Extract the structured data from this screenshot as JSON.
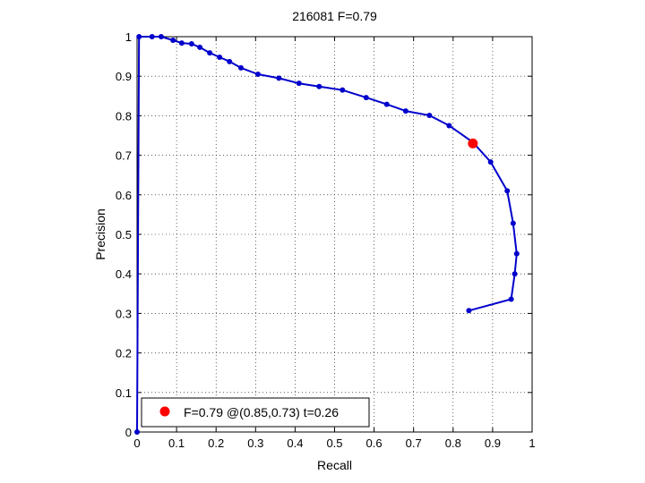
{
  "chart_data": {
    "type": "line",
    "title": "216081 F=0.79",
    "xlabel": "Recall",
    "ylabel": "Precision",
    "xlim": [
      0,
      1
    ],
    "ylim": [
      0,
      1
    ],
    "grid": true,
    "legend_position": "bottom-left",
    "x_ticks": [
      "0",
      "0.1",
      "0.2",
      "0.3",
      "0.4",
      "0.5",
      "0.6",
      "0.7",
      "0.8",
      "0.9",
      "1"
    ],
    "y_ticks": [
      "0",
      "0.1",
      "0.2",
      "0.3",
      "0.4",
      "0.5",
      "0.6",
      "0.7",
      "0.8",
      "0.9",
      "1"
    ],
    "series": [
      {
        "color": "#0000cc",
        "points": [
          [
            0.0,
            0.0
          ],
          [
            0.005,
            1.0
          ],
          [
            0.038,
            1.0
          ],
          [
            0.061,
            1.0
          ],
          [
            0.091,
            0.991
          ],
          [
            0.113,
            0.984
          ],
          [
            0.138,
            0.982
          ],
          [
            0.159,
            0.973
          ],
          [
            0.184,
            0.959
          ],
          [
            0.209,
            0.948
          ],
          [
            0.234,
            0.937
          ],
          [
            0.263,
            0.921
          ],
          [
            0.306,
            0.905
          ],
          [
            0.359,
            0.895
          ],
          [
            0.41,
            0.882
          ],
          [
            0.461,
            0.874
          ],
          [
            0.52,
            0.865
          ],
          [
            0.58,
            0.846
          ],
          [
            0.632,
            0.829
          ],
          [
            0.68,
            0.812
          ],
          [
            0.74,
            0.801
          ],
          [
            0.79,
            0.775
          ],
          [
            0.85,
            0.733
          ],
          [
            0.895,
            0.683
          ],
          [
            0.937,
            0.61
          ],
          [
            0.952,
            0.528
          ],
          [
            0.961,
            0.451
          ],
          [
            0.956,
            0.4
          ],
          [
            0.947,
            0.336
          ],
          [
            0.84,
            0.307
          ]
        ]
      }
    ],
    "best_point": {
      "x": 0.85,
      "y": 0.73,
      "color": "#ff0000",
      "label": "F=0.79 @(0.85,0.73) t=0.26"
    }
  }
}
